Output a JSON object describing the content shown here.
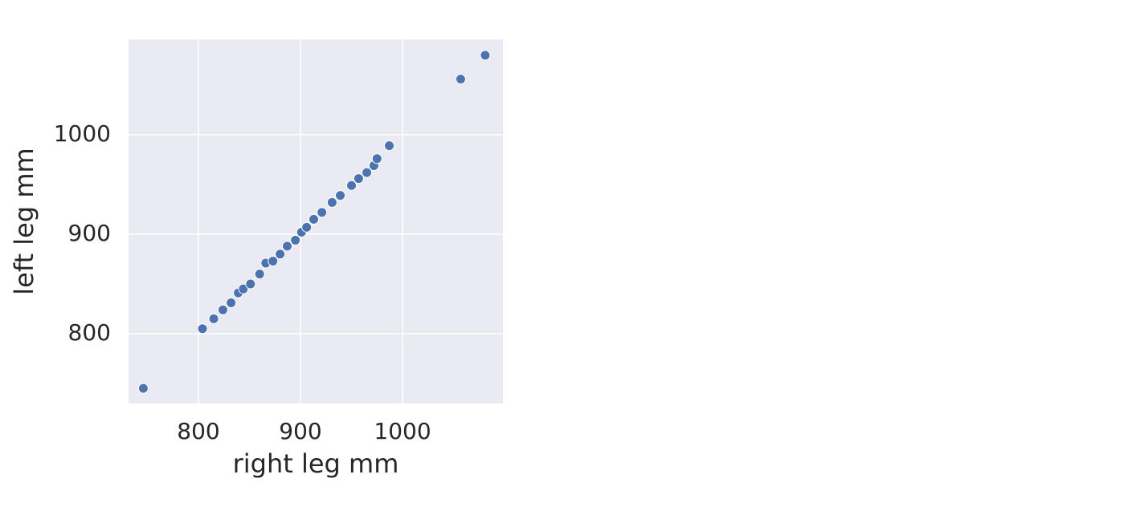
{
  "chart_data": {
    "type": "scatter",
    "x_label": "right leg mm",
    "y_label": "left leg mm",
    "x": [
      746,
      804,
      815,
      824,
      832,
      839,
      844,
      851,
      860,
      866,
      873,
      880,
      887,
      895,
      901,
      906,
      913,
      921,
      931,
      939,
      950,
      957,
      965,
      972,
      975,
      987,
      1057,
      1081
    ],
    "series": [
      {
        "color": "#4c72b0",
        "values": [
          745,
          805,
          815,
          824,
          831,
          841,
          845,
          850,
          860,
          871,
          873,
          880,
          888,
          894,
          902,
          907,
          915,
          922,
          932,
          939,
          949,
          956,
          962,
          969,
          976,
          989,
          1056,
          1080
        ]
      }
    ],
    "xlim": [
      731.5,
      1098.4
    ],
    "ylim": [
      729.8,
      1096
    ],
    "xticks": [
      800,
      900,
      1000
    ],
    "yticks": [
      800,
      900,
      1000
    ],
    "grid": true
  }
}
